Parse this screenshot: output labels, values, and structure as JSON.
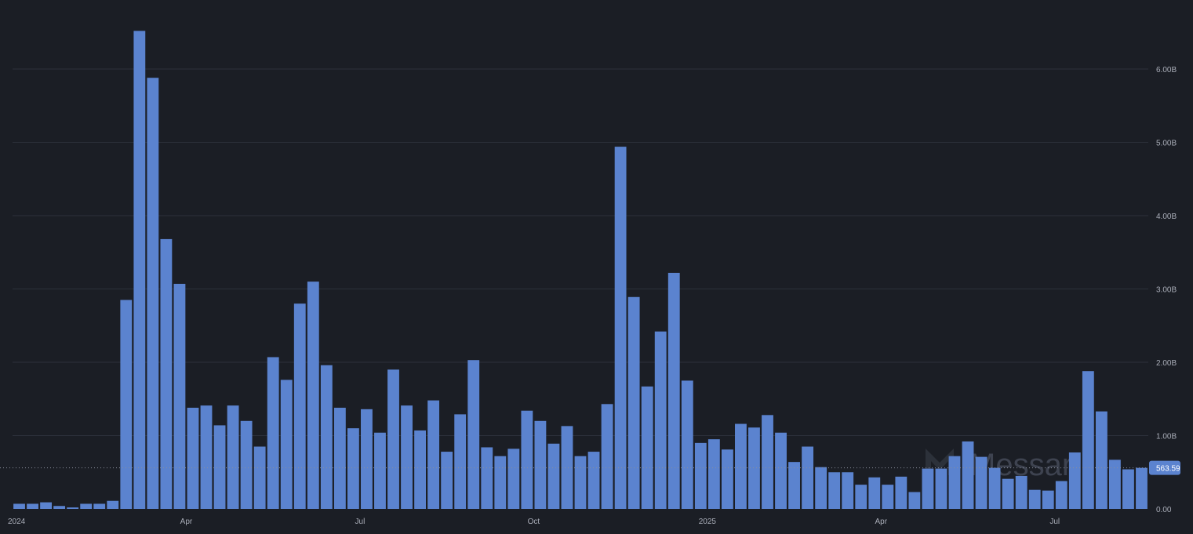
{
  "chart_data": {
    "type": "bar",
    "y_unit": "B",
    "ylim": [
      0,
      6.6
    ],
    "y_ticks": [
      "0.00",
      "1.00B",
      "2.00B",
      "3.00B",
      "4.00B",
      "5.00B",
      "6.00B"
    ],
    "y_tick_values": [
      0,
      1,
      2,
      3,
      4,
      5,
      6
    ],
    "x_tick_labels": [
      "2024",
      "Apr",
      "Jul",
      "Oct",
      "2025",
      "Apr",
      "Jul"
    ],
    "x_tick_bar_index": [
      0,
      13,
      26,
      39,
      52,
      65,
      78
    ],
    "values": [
      0.07,
      0.07,
      0.09,
      0.04,
      0.02,
      0.07,
      0.07,
      0.11,
      2.85,
      6.52,
      5.88,
      3.68,
      3.07,
      1.38,
      1.41,
      1.14,
      1.41,
      1.2,
      0.85,
      2.07,
      1.76,
      2.8,
      3.1,
      1.96,
      1.38,
      1.1,
      1.36,
      1.04,
      1.9,
      1.41,
      1.07,
      1.48,
      0.78,
      1.29,
      2.03,
      0.84,
      0.72,
      0.82,
      1.34,
      1.2,
      0.89,
      1.13,
      0.72,
      0.78,
      1.43,
      4.94,
      2.89,
      1.67,
      2.42,
      3.22,
      1.75,
      0.9,
      0.95,
      0.81,
      1.16,
      1.11,
      1.28,
      1.04,
      0.64,
      0.85,
      0.57,
      0.5,
      0.5,
      0.33,
      0.43,
      0.33,
      0.44,
      0.23,
      0.55,
      0.55,
      0.72,
      0.92,
      0.71,
      0.56,
      0.41,
      0.45,
      0.26,
      0.25,
      0.38,
      0.77,
      1.88,
      1.33,
      0.67,
      0.54,
      0.56
    ],
    "last_value_label": "563.59",
    "grid": true
  },
  "watermark": "Messari"
}
